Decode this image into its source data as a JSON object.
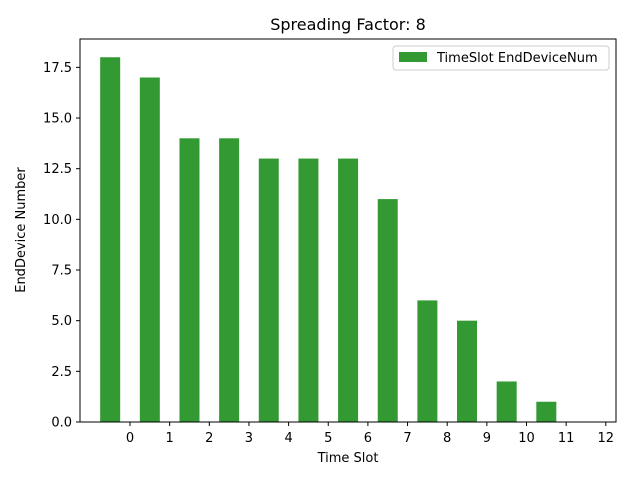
{
  "chart_data": {
    "type": "bar",
    "title": "Spreading Factor: 8",
    "xlabel": "Time Slot",
    "ylabel": "EndDevice Number",
    "x_ticks": [
      0,
      1,
      2,
      3,
      4,
      5,
      6,
      7,
      8,
      9,
      10,
      11,
      12
    ],
    "y_ticks": [
      "0.0",
      "2.5",
      "5.0",
      "7.5",
      "10.0",
      "12.5",
      "15.0",
      "17.5"
    ],
    "ylim": [
      0,
      18.9
    ],
    "legend_position": "top-right",
    "grid": false,
    "bar_color": "#339933",
    "series": [
      {
        "name": "TimeSlot EndDeviceNum",
        "x": [
          0,
          1,
          2,
          3,
          4,
          5,
          6,
          7,
          8,
          9,
          10,
          11
        ],
        "values": [
          18,
          17,
          14,
          14,
          13,
          13,
          13,
          11,
          6,
          5,
          2,
          1
        ]
      }
    ]
  }
}
